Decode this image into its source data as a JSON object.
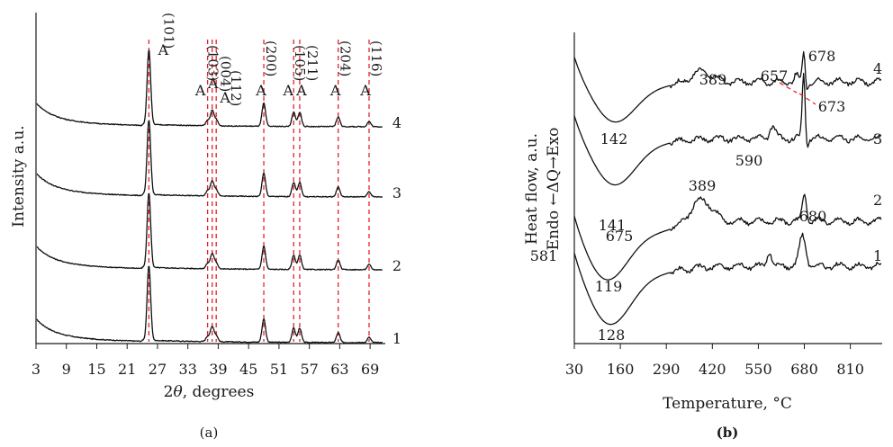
{
  "chart_data": [
    {
      "type": "line",
      "panel_label": "(a)",
      "xlabel": "2θ, degrees",
      "xlabel_italic_part": "θ",
      "ylabel": "Intensity a.u.",
      "xlim": [
        3,
        72
      ],
      "x_ticks": [
        3,
        9,
        15,
        21,
        27,
        33,
        39,
        45,
        51,
        57,
        63,
        69
      ],
      "x_tick_labels": [
        "3",
        "9",
        "15",
        "21",
        "27",
        "33",
        "39",
        "45",
        "51",
        "57",
        "63",
        "69"
      ],
      "peak_marker_label": "A",
      "reflections": [
        {
          "hkl": "(101)",
          "two_theta": 25.3
        },
        {
          "hkl": "(103)",
          "two_theta": 36.9
        },
        {
          "hkl": "(004)",
          "two_theta": 37.8
        },
        {
          "hkl": "(112)",
          "two_theta": 38.6
        },
        {
          "hkl": "(200)",
          "two_theta": 48.0
        },
        {
          "hkl": "(105)",
          "two_theta": 53.9
        },
        {
          "hkl": "(211)",
          "two_theta": 55.1
        },
        {
          "hkl": "(204)",
          "two_theta": 62.7
        },
        {
          "hkl": "(116)",
          "two_theta": 68.8
        }
      ],
      "series": [
        {
          "name": "1",
          "offset": 0
        },
        {
          "name": "2",
          "offset": 1
        },
        {
          "name": "3",
          "offset": 2
        },
        {
          "name": "4",
          "offset": 3
        }
      ]
    },
    {
      "type": "line",
      "panel_label": "(b)",
      "xlabel": "Temperature, °C",
      "ylabel_line1": "Heat flow, a.u.",
      "ylabel_line2": "Endo ←ΔQ→Exo",
      "xlim": [
        30,
        900
      ],
      "x_ticks": [
        30,
        160,
        290,
        420,
        550,
        680,
        810
      ],
      "x_tick_labels": [
        "30",
        "160",
        "290",
        "420",
        "550",
        "680",
        "810"
      ],
      "series": [
        {
          "name": "1",
          "annotations": [
            "128",
            "581",
            "675"
          ]
        },
        {
          "name": "2",
          "annotations": [
            "119",
            "389",
            "680"
          ]
        },
        {
          "name": "3",
          "annotations": [
            "141",
            "590"
          ]
        },
        {
          "name": "4",
          "annotations": [
            "142",
            "389",
            "657",
            "678",
            "673"
          ]
        }
      ]
    }
  ]
}
